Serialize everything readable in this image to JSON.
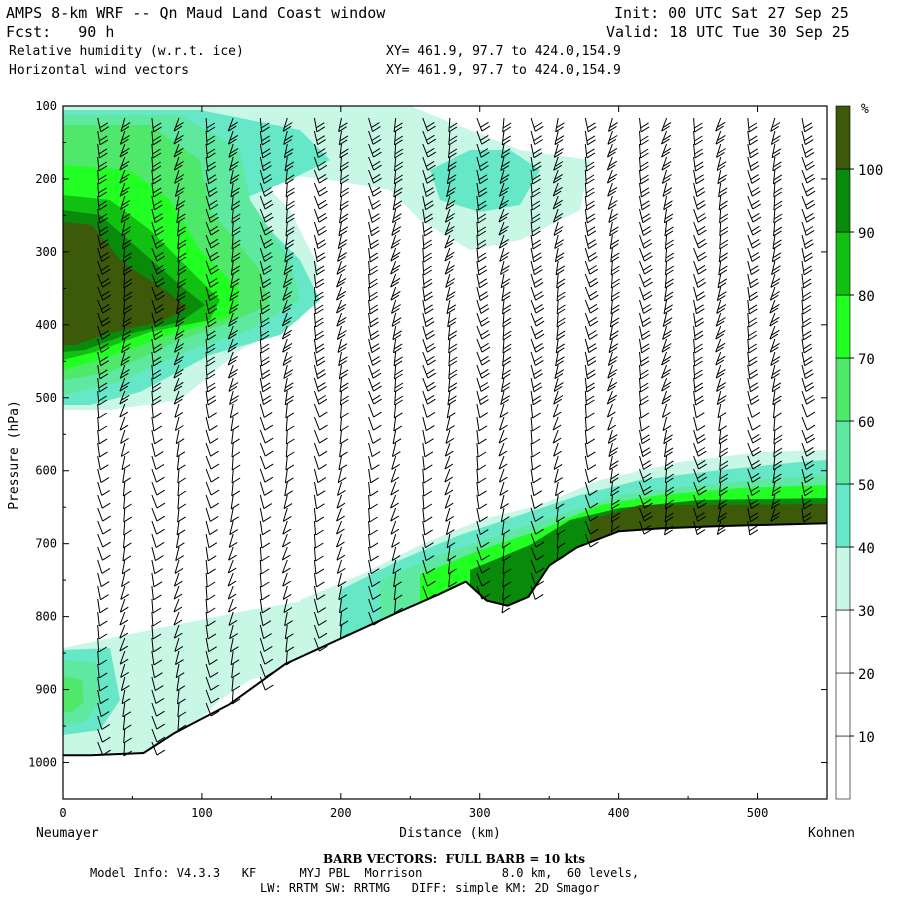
{
  "header": {
    "title": "AMPS 8-km WRF -- Qn Maud Land Coast window",
    "init": "Init: 00 UTC Sat 27 Sep 25",
    "fcst": "Fcst:   90 h",
    "valid": "Valid: 18 UTC Tue 30 Sep 25",
    "field1": "Relative humidity (w.r.t. ice)",
    "field2": "Horizontal wind vectors",
    "xy1": "XY= 461.9, 97.7 to 424.0,154.9",
    "xy2": "XY= 461.9, 97.7 to 424.0,154.9"
  },
  "footer": {
    "barb_note": "BARB VECTORS:  FULL BARB = 10 kts",
    "model_line": "Model Info: V4.3.3   KF      MYJ PBL  Morrison           8.0 km,  60 levels,",
    "physics_line": "LW: RRTM SW: RRTMG   DIFF: simple KM: 2D Smagor"
  },
  "colors": {
    "level_30_40": "#c8f7e6",
    "level_40_50": "#66e8c8",
    "level_50_60": "#5ee8a0",
    "level_60_70": "#50e86a",
    "level_70_80": "#22ff22",
    "level_80_90": "#12c012",
    "level_90_100": "#0a8a0a",
    "level_100": "#3d5a0a",
    "barb": "#000000"
  },
  "chart_data": {
    "type": "heatmap",
    "title": "Relative humidity (w.r.t. ice) cross-section with horizontal wind barbs",
    "xlabel": "Distance (km)",
    "ylabel": "Pressure (hPa)",
    "xlim": [
      0,
      550
    ],
    "ylim": [
      1050,
      100
    ],
    "x_ticks": [
      0,
      100,
      200,
      300,
      400,
      500
    ],
    "y_ticks": [
      100,
      200,
      300,
      400,
      500,
      600,
      700,
      800,
      900,
      1000
    ],
    "start_label": "Neumayer",
    "end_label": "Kohnen",
    "colorbar": {
      "unit": "%",
      "levels": [
        10,
        20,
        30,
        40,
        50,
        60,
        70,
        80,
        90,
        100
      ]
    },
    "terrain_surface_hpa": {
      "distance_km": [
        0,
        20,
        58,
        80,
        120,
        160,
        200,
        240,
        270,
        290,
        305,
        320,
        335,
        350,
        370,
        400,
        430,
        470,
        510,
        550
      ],
      "pressure_hpa": [
        990,
        990,
        987,
        960,
        920,
        865,
        830,
        795,
        770,
        752,
        778,
        785,
        773,
        730,
        705,
        683,
        679,
        676,
        674,
        672
      ]
    },
    "rh_maxima": [
      {
        "distance_km": 20,
        "pressure_hpa": 350,
        "rh_percent": 100
      },
      {
        "distance_km": 300,
        "pressure_hpa": 190,
        "rh_percent": 45
      },
      {
        "distance_km": 25,
        "pressure_hpa": 900,
        "rh_percent": 60
      }
    ],
    "barb_note": "FULL BARB = 10 kts"
  }
}
